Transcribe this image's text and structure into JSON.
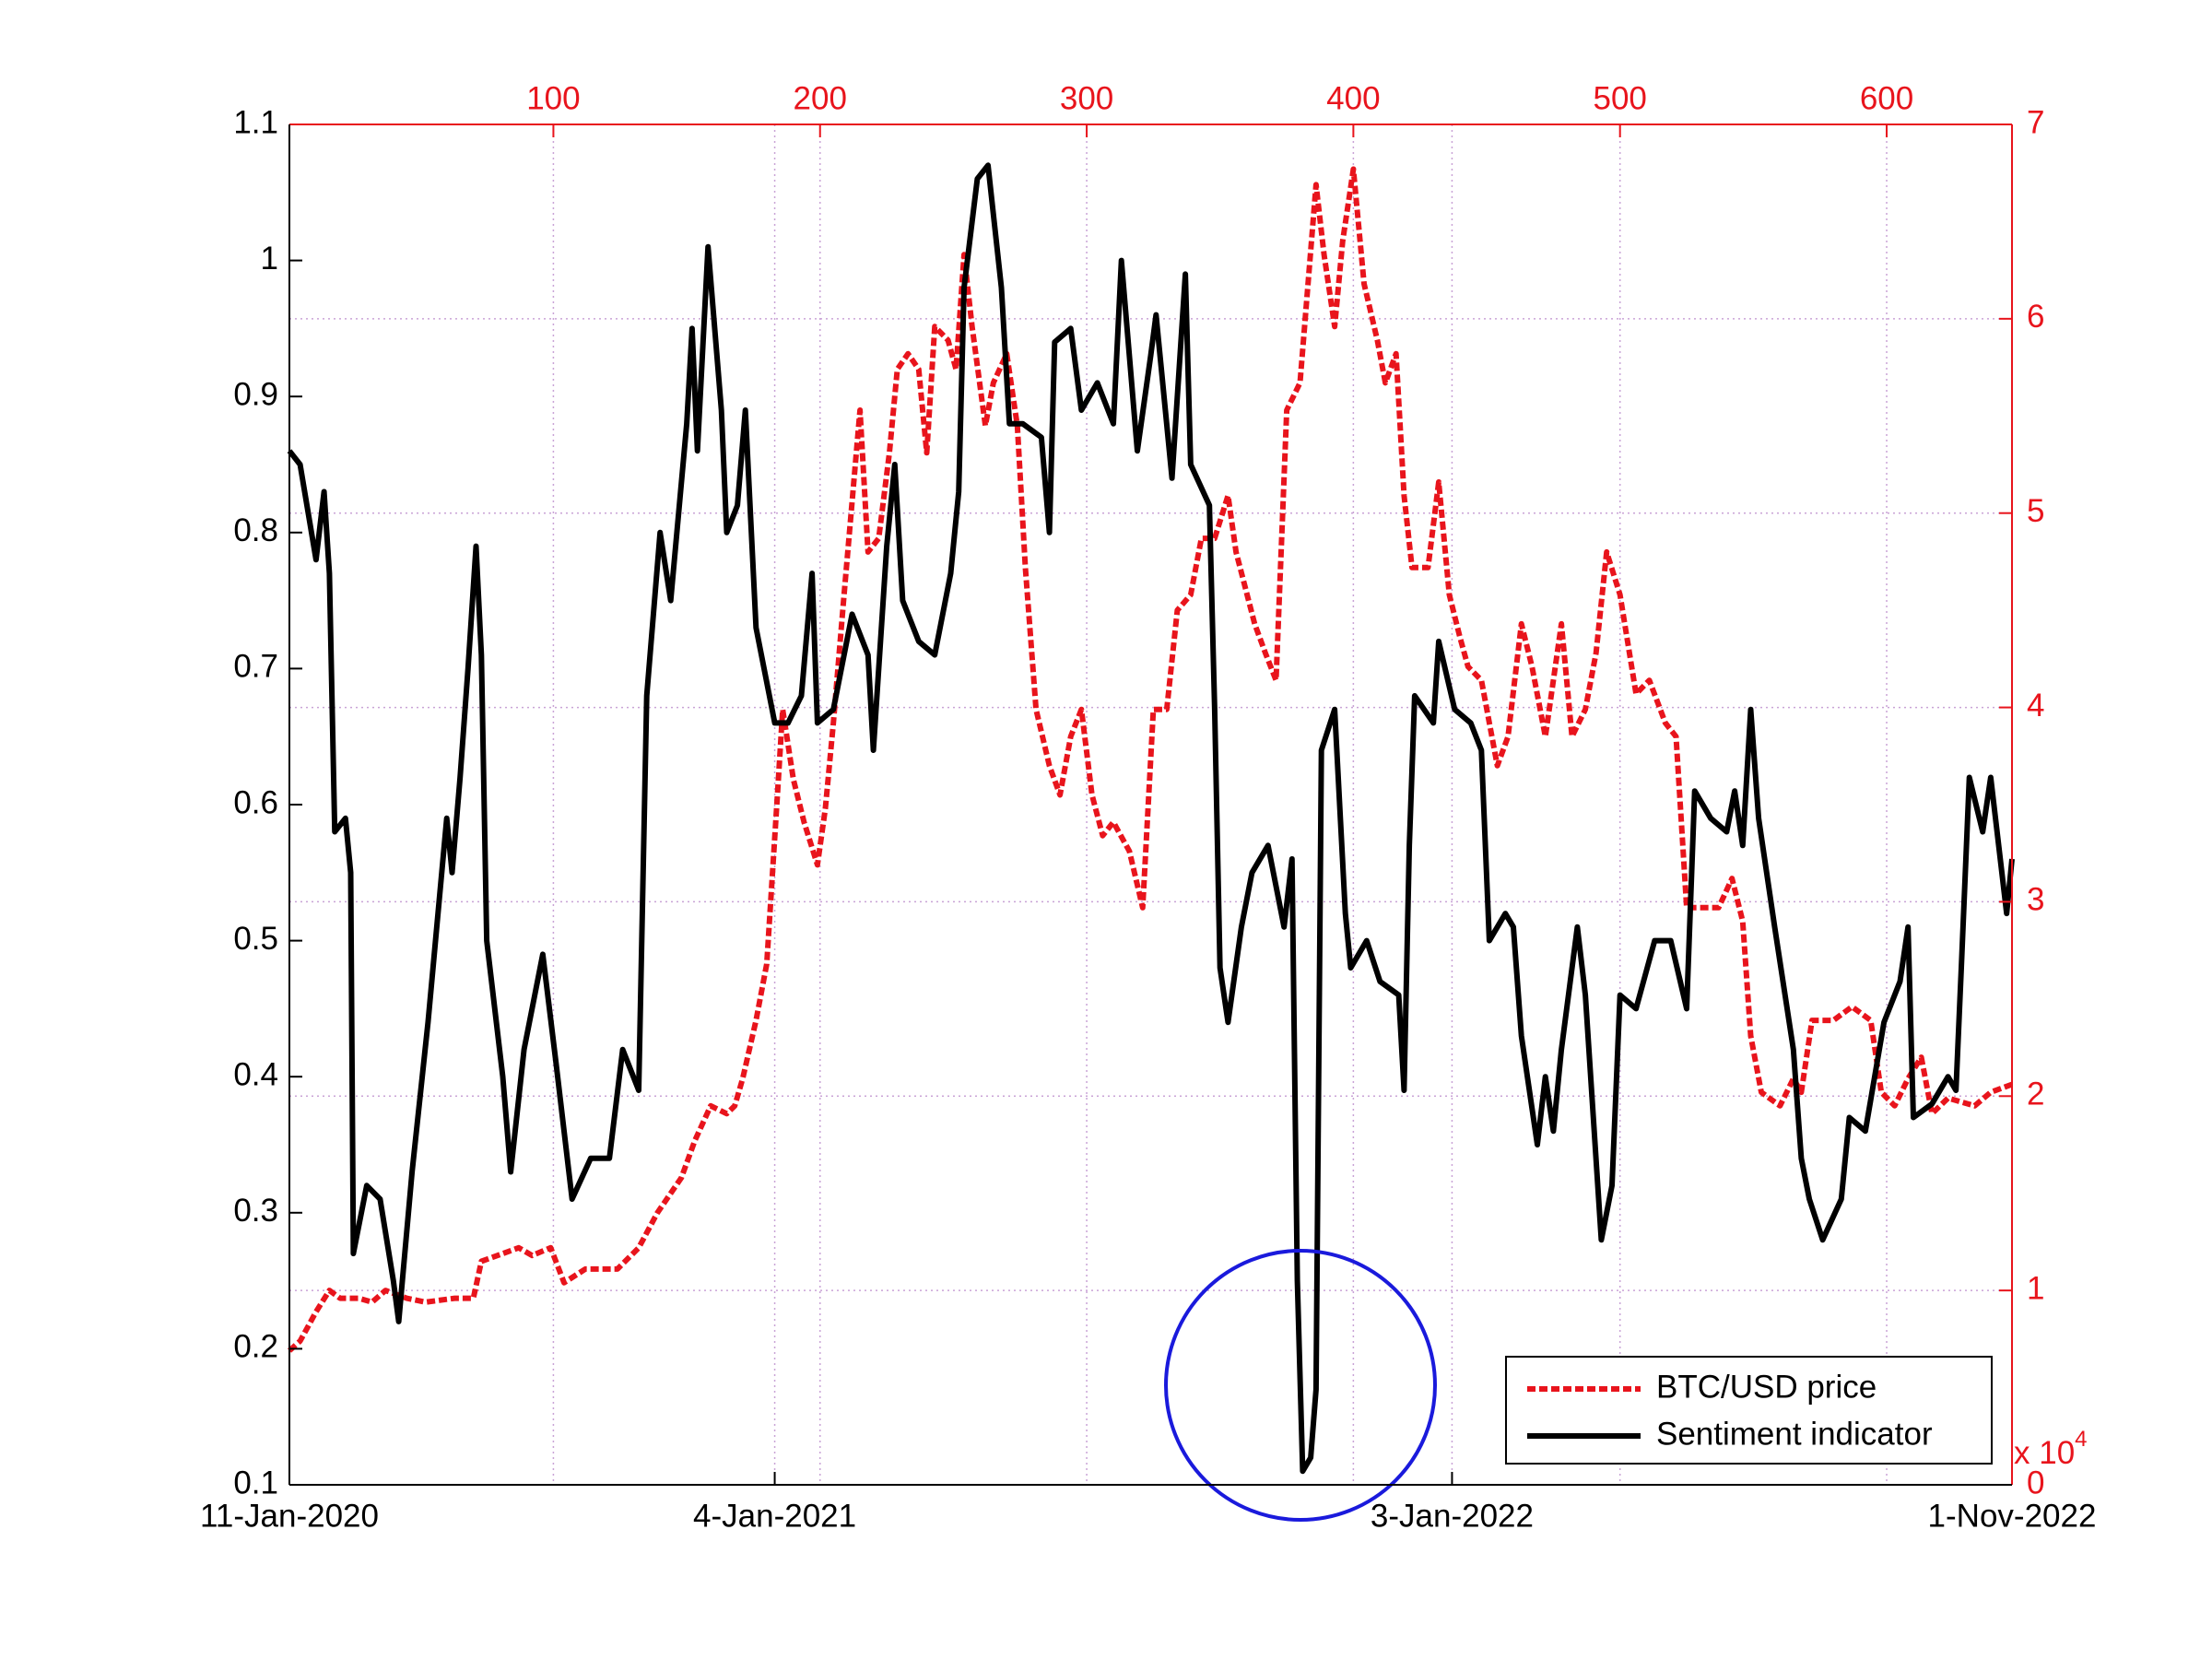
{
  "chart_data": {
    "type": "line",
    "xlim": [
      1,
      647
    ],
    "xticks": [
      {
        "value": 1,
        "label": "11-Jan-2020"
      },
      {
        "value": 183,
        "label": "4-Jan-2021"
      },
      {
        "value": 437,
        "label": "3-Jan-2022"
      },
      {
        "value": 647,
        "label": "1-Nov-2022"
      }
    ],
    "x2ticks": [
      100,
      200,
      300,
      400,
      500,
      600
    ],
    "ylim": [
      0.1,
      1.1
    ],
    "yticks": [
      0.1,
      0.2,
      0.3,
      0.4,
      0.5,
      0.6,
      0.7,
      0.8,
      0.9,
      1,
      1.1
    ],
    "y2lim": [
      0,
      7
    ],
    "y2ticks": [
      0,
      1,
      2,
      3,
      4,
      5,
      6,
      7
    ],
    "y2_multiplier": {
      "base": "x 10",
      "exponent": "4"
    },
    "grid": true,
    "legend": "lower right",
    "series": [
      {
        "name": "BTC/USD price",
        "color": "#e8141c",
        "axis": "y2",
        "dash": true,
        "x": [
          1,
          5,
          11,
          16,
          20,
          27,
          32,
          37,
          45,
          52,
          63,
          70,
          73,
          79,
          87,
          92,
          99,
          104,
          112,
          124,
          132,
          139,
          148,
          153,
          159,
          165,
          168,
          171,
          176,
          180,
          184,
          186,
          190,
          194,
          199,
          202,
          205,
          209,
          215,
          218,
          222,
          226,
          229,
          233,
          237,
          240,
          243,
          248,
          251,
          254,
          257,
          262,
          265,
          270,
          274,
          277,
          281,
          286,
          290,
          294,
          298,
          302,
          306,
          310,
          316,
          321,
          325,
          330,
          334,
          339,
          343,
          348,
          353,
          356,
          363,
          367,
          371,
          375,
          380,
          386,
          389,
          393,
          396,
          400,
          404,
          409,
          412,
          416,
          419,
          422,
          428,
          432,
          436,
          440,
          443,
          448,
          454,
          458,
          463,
          467,
          472,
          478,
          482,
          487,
          491,
          495,
          500,
          506,
          511,
          517,
          521,
          525,
          531,
          537,
          542,
          546,
          549,
          553,
          560,
          565,
          568,
          572,
          580,
          587,
          594,
          598,
          603,
          608,
          613,
          617,
          623,
          633,
          639,
          647
        ],
        "values": [
          0.69,
          0.74,
          0.89,
          1.0,
          0.96,
          0.96,
          0.94,
          1.0,
          0.96,
          0.94,
          0.96,
          0.96,
          1.15,
          1.18,
          1.22,
          1.18,
          1.22,
          1.04,
          1.11,
          1.11,
          1.22,
          1.4,
          1.58,
          1.77,
          1.95,
          1.91,
          1.95,
          2.09,
          2.39,
          2.68,
          3.55,
          3.99,
          3.63,
          3.41,
          3.19,
          3.48,
          3.92,
          4.58,
          5.53,
          4.8,
          4.87,
          5.31,
          5.74,
          5.82,
          5.74,
          5.31,
          5.96,
          5.89,
          5.74,
          6.33,
          5.96,
          5.45,
          5.67,
          5.82,
          5.45,
          4.72,
          3.99,
          3.7,
          3.55,
          3.85,
          3.99,
          3.55,
          3.34,
          3.41,
          3.26,
          2.97,
          3.99,
          3.99,
          4.5,
          4.58,
          4.87,
          4.87,
          5.09,
          4.8,
          4.43,
          4.28,
          4.14,
          5.53,
          5.67,
          6.69,
          6.33,
          5.96,
          6.4,
          6.77,
          6.18,
          5.89,
          5.67,
          5.82,
          5.09,
          4.72,
          4.72,
          5.16,
          4.58,
          4.36,
          4.21,
          4.14,
          3.7,
          3.85,
          4.43,
          4.21,
          3.85,
          4.43,
          3.85,
          3.99,
          4.28,
          4.8,
          4.58,
          4.07,
          4.14,
          3.92,
          3.85,
          2.97,
          2.97,
          2.97,
          3.12,
          2.9,
          2.31,
          2.02,
          1.95,
          2.09,
          2.02,
          2.39,
          2.39,
          2.46,
          2.39,
          2.02,
          1.95,
          2.09,
          2.2,
          1.91,
          1.99,
          1.95,
          2.02,
          2.06
        ]
      },
      {
        "name": "Sentiment indicator",
        "color": "#000000",
        "axis": "y",
        "x": [
          1,
          5,
          11,
          14,
          16,
          18,
          22,
          24,
          25,
          30,
          35,
          40,
          42,
          47,
          53,
          60,
          62,
          65,
          68,
          71,
          73,
          75,
          81,
          84,
          89,
          96,
          101,
          104,
          107,
          114,
          121,
          126,
          132,
          135,
          140,
          144,
          150,
          152,
          154,
          158,
          163,
          165,
          169,
          172,
          176,
          183,
          188,
          193,
          197,
          199,
          205,
          212,
          218,
          220,
          225,
          228,
          231,
          237,
          243,
          249,
          252,
          254,
          259,
          263,
          268,
          271,
          276,
          283,
          286,
          288,
          294,
          298,
          304,
          310,
          313,
          319,
          324,
          326,
          332,
          337,
          339,
          346,
          348,
          350,
          353,
          358,
          362,
          368,
          374,
          377,
          379,
          381,
          384,
          386,
          388,
          393,
          397,
          399,
          405,
          410,
          417,
          419,
          421,
          423,
          430,
          432,
          438,
          444,
          448,
          451,
          457,
          460,
          463,
          469,
          472,
          475,
          478,
          484,
          487,
          493,
          497,
          500,
          506,
          513,
          519,
          525,
          528,
          534,
          540,
          543,
          546,
          549,
          552,
          558,
          565,
          568,
          571,
          576,
          583,
          586,
          592,
          599,
          605,
          608,
          610,
          617,
          623,
          626,
          628,
          631,
          636,
          639,
          645,
          647
        ],
        "values": [
          0.86,
          0.85,
          0.78,
          0.83,
          0.77,
          0.58,
          0.59,
          0.55,
          0.27,
          0.32,
          0.31,
          0.25,
          0.22,
          0.33,
          0.44,
          0.59,
          0.55,
          0.62,
          0.7,
          0.79,
          0.71,
          0.5,
          0.4,
          0.33,
          0.42,
          0.49,
          0.41,
          0.36,
          0.31,
          0.34,
          0.34,
          0.42,
          0.39,
          0.68,
          0.8,
          0.75,
          0.88,
          0.95,
          0.86,
          1.01,
          0.89,
          0.8,
          0.82,
          0.89,
          0.73,
          0.66,
          0.66,
          0.68,
          0.77,
          0.66,
          0.67,
          0.74,
          0.71,
          0.64,
          0.79,
          0.85,
          0.75,
          0.72,
          0.71,
          0.77,
          0.83,
          0.98,
          1.06,
          1.07,
          0.98,
          0.88,
          0.88,
          0.87,
          0.8,
          0.94,
          0.95,
          0.89,
          0.91,
          0.88,
          1.0,
          0.86,
          0.93,
          0.96,
          0.84,
          0.99,
          0.85,
          0.82,
          0.67,
          0.48,
          0.44,
          0.51,
          0.55,
          0.57,
          0.51,
          0.56,
          0.25,
          0.11,
          0.12,
          0.17,
          0.64,
          0.67,
          0.52,
          0.48,
          0.5,
          0.47,
          0.46,
          0.39,
          0.57,
          0.68,
          0.66,
          0.72,
          0.67,
          0.66,
          0.64,
          0.5,
          0.52,
          0.51,
          0.43,
          0.35,
          0.4,
          0.36,
          0.42,
          0.51,
          0.46,
          0.28,
          0.32,
          0.46,
          0.45,
          0.5,
          0.5,
          0.45,
          0.61,
          0.59,
          0.58,
          0.61,
          0.57,
          0.67,
          0.59,
          0.51,
          0.42,
          0.34,
          0.31,
          0.28,
          0.31,
          0.37,
          0.36,
          0.44,
          0.47,
          0.51,
          0.37,
          0.38,
          0.4,
          0.39,
          0.48,
          0.62,
          0.58,
          0.62,
          0.52,
          0.56
        ]
      }
    ]
  }
}
